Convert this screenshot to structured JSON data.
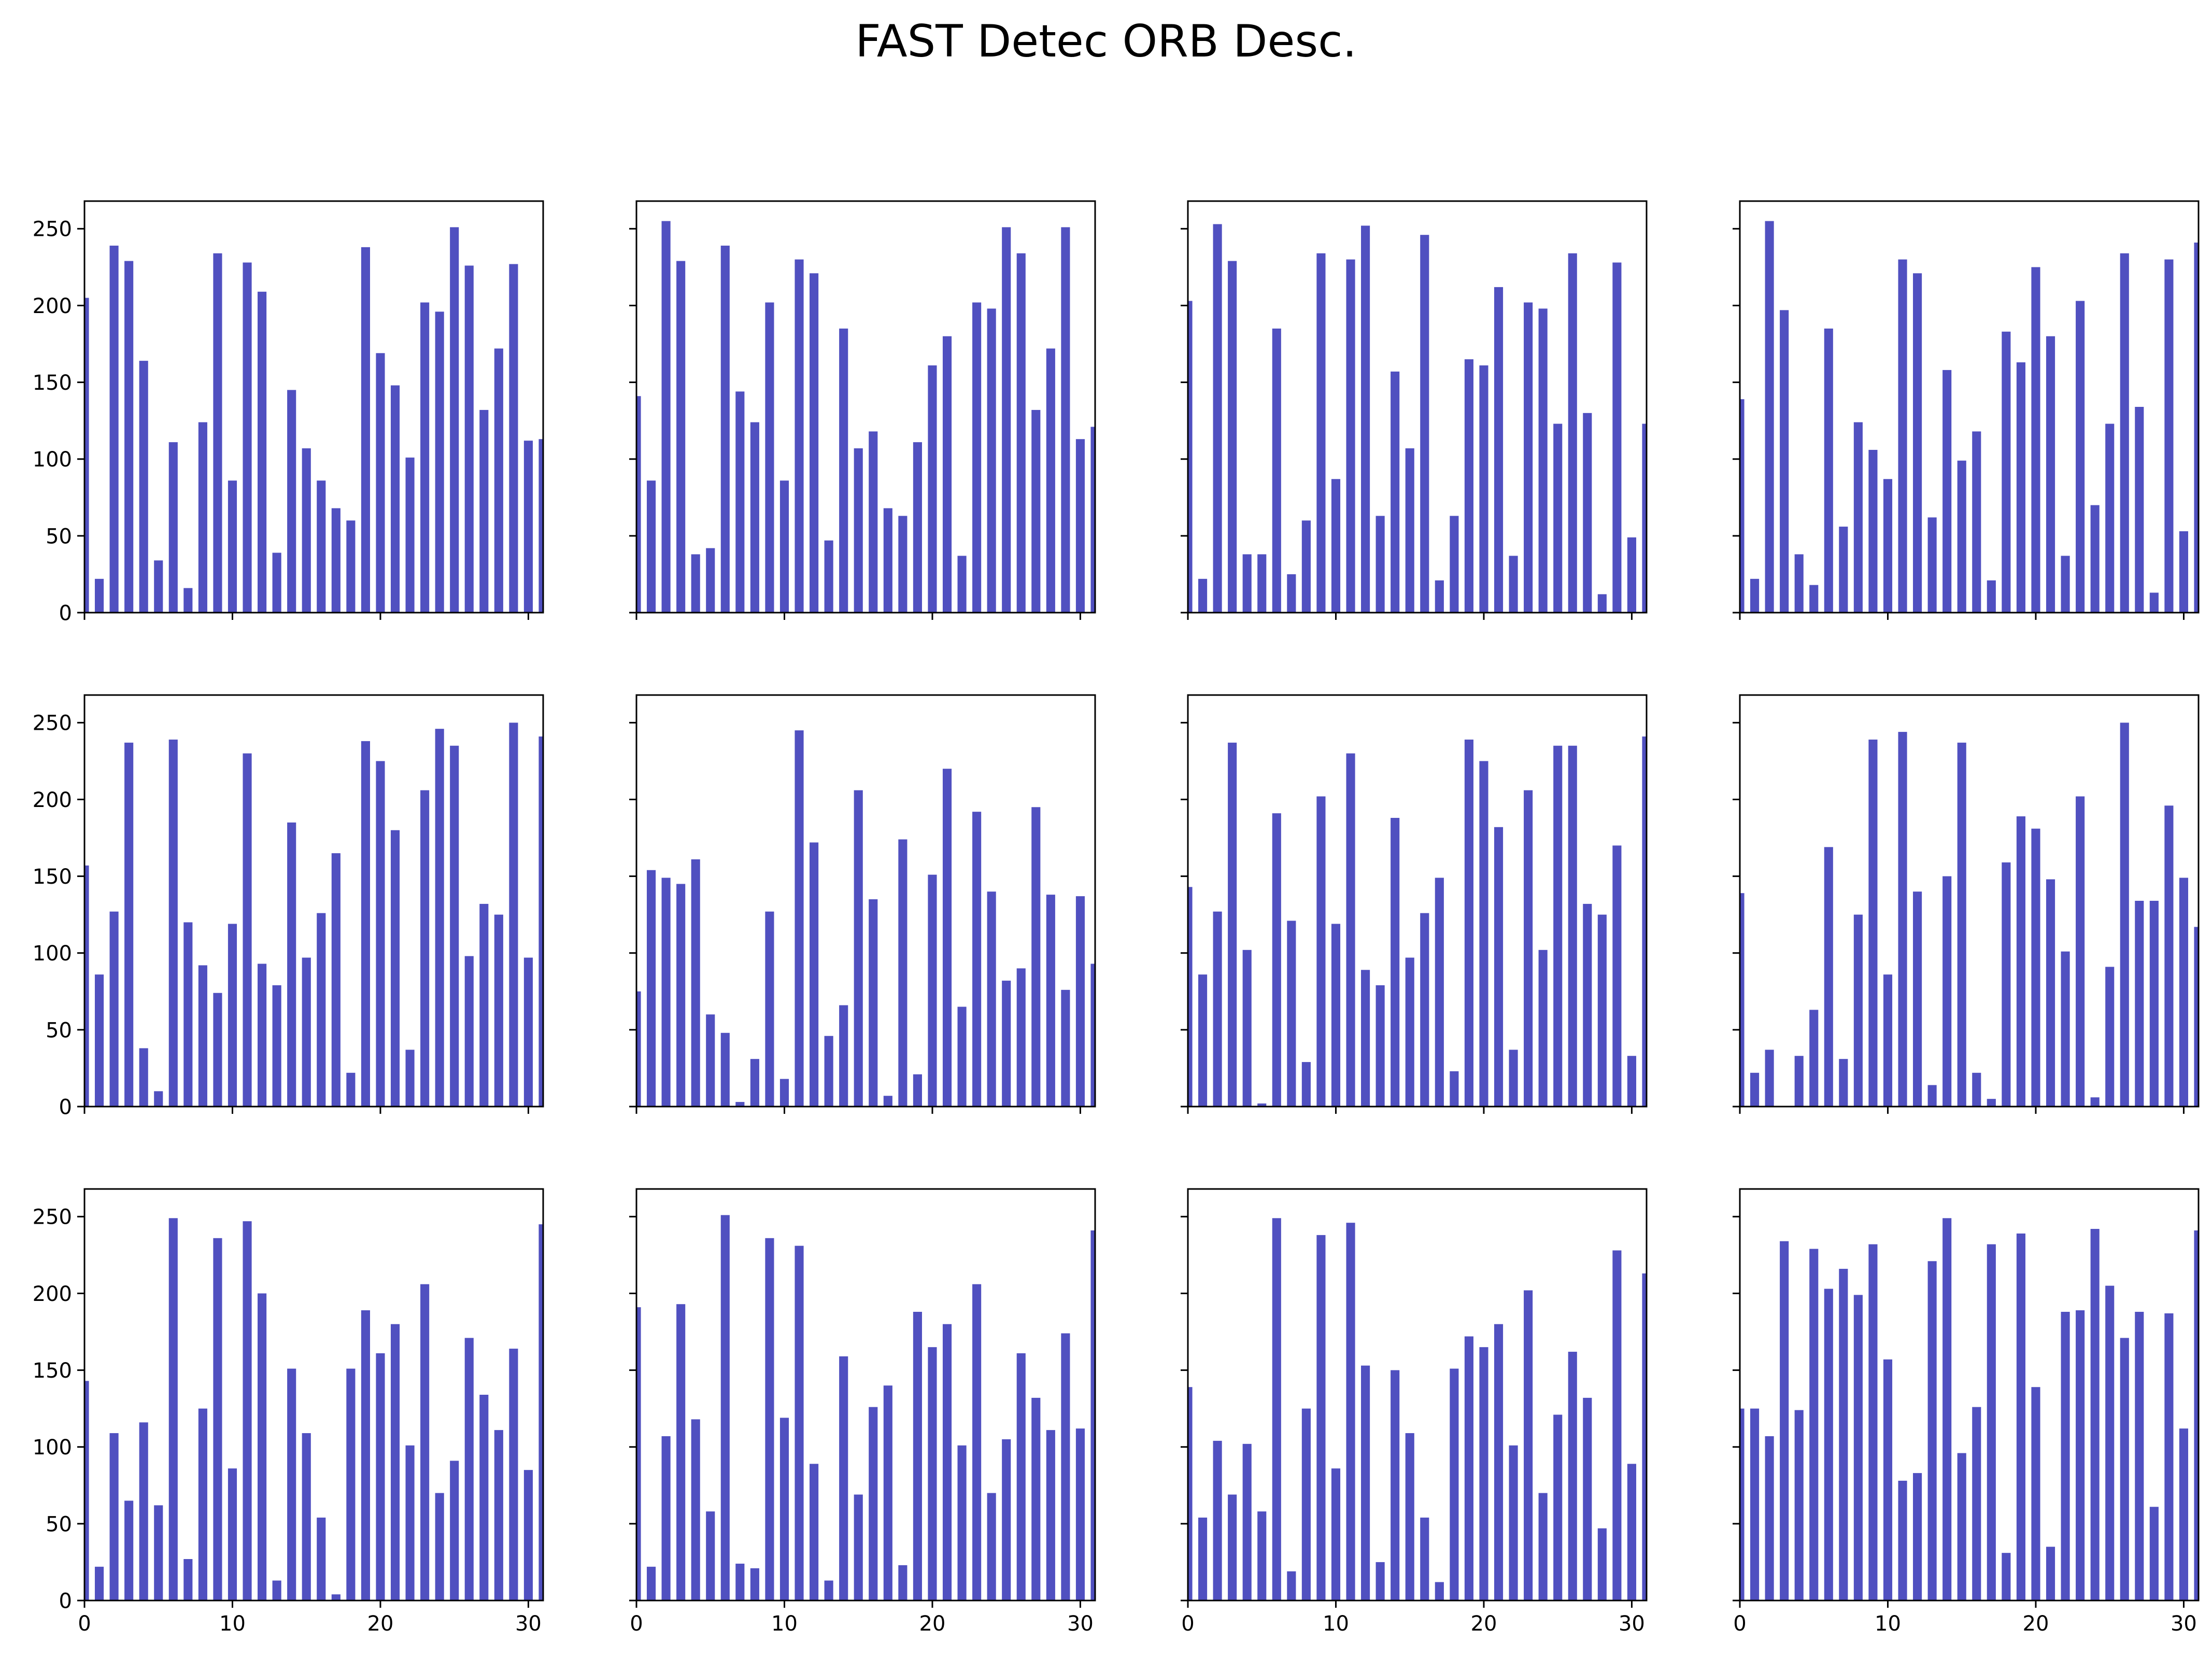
{
  "figure": {
    "title": "FAST Detec ORB Desc."
  },
  "colors": {
    "bar": "#5050c0",
    "axis": "#000000",
    "background": "#ffffff"
  },
  "chart_data": {
    "type": "bar",
    "layout": "3x4 grid of subplots, shared axes",
    "title": "FAST Detec ORB Desc.",
    "x": [
      0,
      1,
      2,
      3,
      4,
      5,
      6,
      7,
      8,
      9,
      10,
      11,
      12,
      13,
      14,
      15,
      16,
      17,
      18,
      19,
      20,
      21,
      22,
      23,
      24,
      25,
      26,
      27,
      28,
      29,
      30,
      31
    ],
    "xlim": [
      0,
      31
    ],
    "ylim": [
      0,
      268
    ],
    "xticks": [
      0,
      10,
      20,
      30
    ],
    "yticks": [
      0,
      50,
      100,
      150,
      200,
      250
    ],
    "grid": false,
    "subplots": [
      {
        "values": [
          205,
          22,
          239,
          229,
          164,
          34,
          111,
          16,
          124,
          234,
          86,
          228,
          209,
          39,
          145,
          107,
          86,
          68,
          60,
          238,
          169,
          148,
          101,
          202,
          196,
          251,
          226,
          132,
          172,
          227,
          112,
          113
        ]
      },
      {
        "values": [
          141,
          86,
          255,
          229,
          38,
          42,
          239,
          144,
          124,
          202,
          86,
          230,
          221,
          47,
          185,
          107,
          118,
          68,
          63,
          111,
          161,
          180,
          37,
          202,
          198,
          251,
          234,
          132,
          172,
          251,
          113,
          121
        ]
      },
      {
        "values": [
          203,
          22,
          253,
          229,
          38,
          38,
          185,
          25,
          60,
          234,
          87,
          230,
          252,
          63,
          157,
          107,
          246,
          21,
          63,
          165,
          161,
          212,
          37,
          202,
          198,
          123,
          234,
          130,
          12,
          228,
          49,
          123
        ]
      },
      {
        "values": [
          139,
          22,
          255,
          197,
          38,
          18,
          185,
          56,
          124,
          106,
          87,
          230,
          221,
          62,
          158,
          99,
          118,
          21,
          183,
          163,
          225,
          180,
          37,
          203,
          70,
          123,
          234,
          134,
          13,
          230,
          53,
          241
        ]
      },
      {
        "values": [
          157,
          86,
          127,
          237,
          38,
          10,
          239,
          120,
          92,
          74,
          119,
          230,
          93,
          79,
          185,
          97,
          126,
          165,
          22,
          238,
          225,
          180,
          37,
          206,
          246,
          235,
          98,
          132,
          125,
          250,
          97,
          241
        ]
      },
      {
        "values": [
          75,
          154,
          149,
          145,
          161,
          60,
          48,
          3,
          31,
          127,
          18,
          245,
          172,
          46,
          66,
          206,
          135,
          7,
          174,
          21,
          151,
          220,
          65,
          192,
          140,
          82,
          90,
          195,
          138,
          76,
          137,
          93
        ]
      },
      {
        "values": [
          143,
          86,
          127,
          237,
          102,
          2,
          191,
          121,
          29,
          202,
          119,
          230,
          89,
          79,
          188,
          97,
          126,
          149,
          23,
          239,
          225,
          182,
          37,
          206,
          102,
          235,
          235,
          132,
          125,
          170,
          33,
          241
        ]
      },
      {
        "values": [
          139,
          22,
          37,
          0,
          33,
          63,
          169,
          31,
          125,
          239,
          86,
          244,
          140,
          14,
          150,
          237,
          22,
          5,
          159,
          189,
          181,
          148,
          101,
          202,
          6,
          91,
          250,
          134,
          134,
          196,
          149,
          117
        ]
      },
      {
        "values": [
          143,
          22,
          109,
          65,
          116,
          62,
          249,
          27,
          125,
          236,
          86,
          247,
          200,
          13,
          151,
          109,
          54,
          4,
          151,
          189,
          161,
          180,
          101,
          206,
          70,
          91,
          171,
          134,
          111,
          164,
          85,
          245
        ]
      },
      {
        "values": [
          191,
          22,
          107,
          193,
          118,
          58,
          251,
          24,
          21,
          236,
          119,
          231,
          89,
          13,
          159,
          69,
          126,
          140,
          23,
          188,
          165,
          180,
          101,
          206,
          70,
          105,
          161,
          132,
          111,
          174,
          112,
          241
        ]
      },
      {
        "values": [
          139,
          54,
          104,
          69,
          102,
          58,
          249,
          19,
          125,
          238,
          86,
          246,
          153,
          25,
          150,
          109,
          54,
          12,
          151,
          172,
          165,
          180,
          101,
          202,
          70,
          121,
          162,
          132,
          47,
          228,
          89,
          213
        ]
      },
      {
        "values": [
          125,
          125,
          107,
          234,
          124,
          229,
          203,
          216,
          199,
          232,
          157,
          78,
          83,
          221,
          249,
          96,
          126,
          232,
          31,
          239,
          139,
          35,
          188,
          189,
          242,
          205,
          171,
          188,
          61,
          187,
          112,
          241
        ]
      }
    ]
  }
}
